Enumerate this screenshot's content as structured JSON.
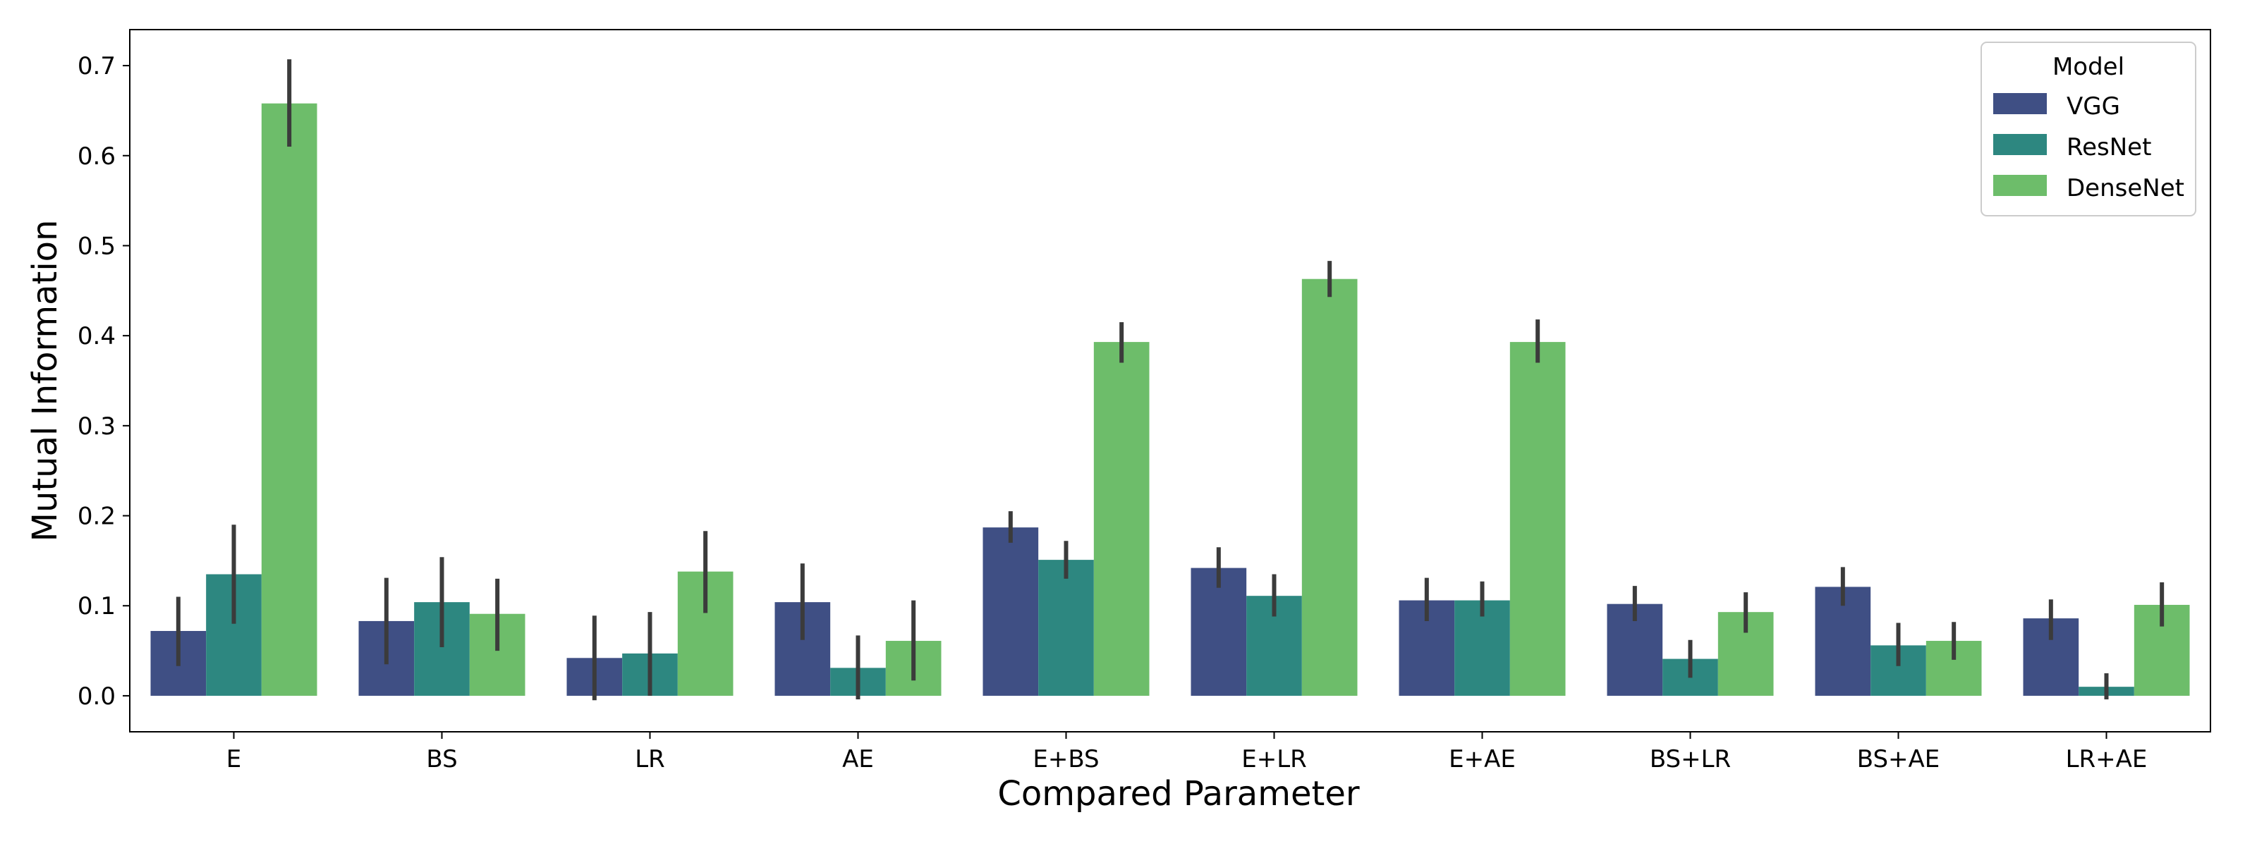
{
  "chart_data": {
    "type": "bar",
    "title": "",
    "xlabel": "Compared Parameter",
    "ylabel": "Mutual Information",
    "ylim": [
      -0.04,
      0.74
    ],
    "yticks": [
      0.0,
      0.1,
      0.2,
      0.3,
      0.4,
      0.5,
      0.6,
      0.7
    ],
    "ytick_labels": [
      "0.0",
      "0.1",
      "0.2",
      "0.3",
      "0.4",
      "0.5",
      "0.6",
      "0.7"
    ],
    "grid": false,
    "categories": [
      "E",
      "BS",
      "LR",
      "AE",
      "E+BS",
      "E+LR",
      "E+AE",
      "BS+LR",
      "BS+AE",
      "LR+AE"
    ],
    "legend": {
      "title": "Model",
      "placement": "top-right"
    },
    "series": [
      {
        "name": "VGG",
        "color": "#3f4f84",
        "values": [
          0.072,
          0.083,
          0.042,
          0.104,
          0.187,
          0.142,
          0.106,
          0.102,
          0.121,
          0.086
        ],
        "err_low": [
          0.033,
          0.035,
          -0.005,
          0.062,
          0.17,
          0.12,
          0.083,
          0.083,
          0.1,
          0.062
        ],
        "err_high": [
          0.11,
          0.131,
          0.089,
          0.147,
          0.205,
          0.165,
          0.131,
          0.122,
          0.143,
          0.107
        ]
      },
      {
        "name": "ResNet",
        "color": "#2d8780",
        "values": [
          0.135,
          0.104,
          0.047,
          0.031,
          0.151,
          0.111,
          0.106,
          0.041,
          0.056,
          0.01
        ],
        "err_low": [
          0.08,
          0.054,
          0.0,
          -0.004,
          0.13,
          0.088,
          0.088,
          0.02,
          0.033,
          -0.004
        ],
        "err_high": [
          0.19,
          0.154,
          0.093,
          0.067,
          0.172,
          0.135,
          0.127,
          0.062,
          0.081,
          0.025
        ]
      },
      {
        "name": "DenseNet",
        "color": "#6dbd6a",
        "values": [
          0.658,
          0.091,
          0.138,
          0.061,
          0.393,
          0.463,
          0.393,
          0.093,
          0.061,
          0.101
        ],
        "err_low": [
          0.61,
          0.05,
          0.092,
          0.017,
          0.37,
          0.443,
          0.37,
          0.07,
          0.04,
          0.077
        ],
        "err_high": [
          0.707,
          0.13,
          0.183,
          0.106,
          0.415,
          0.483,
          0.418,
          0.115,
          0.082,
          0.126
        ]
      }
    ]
  }
}
